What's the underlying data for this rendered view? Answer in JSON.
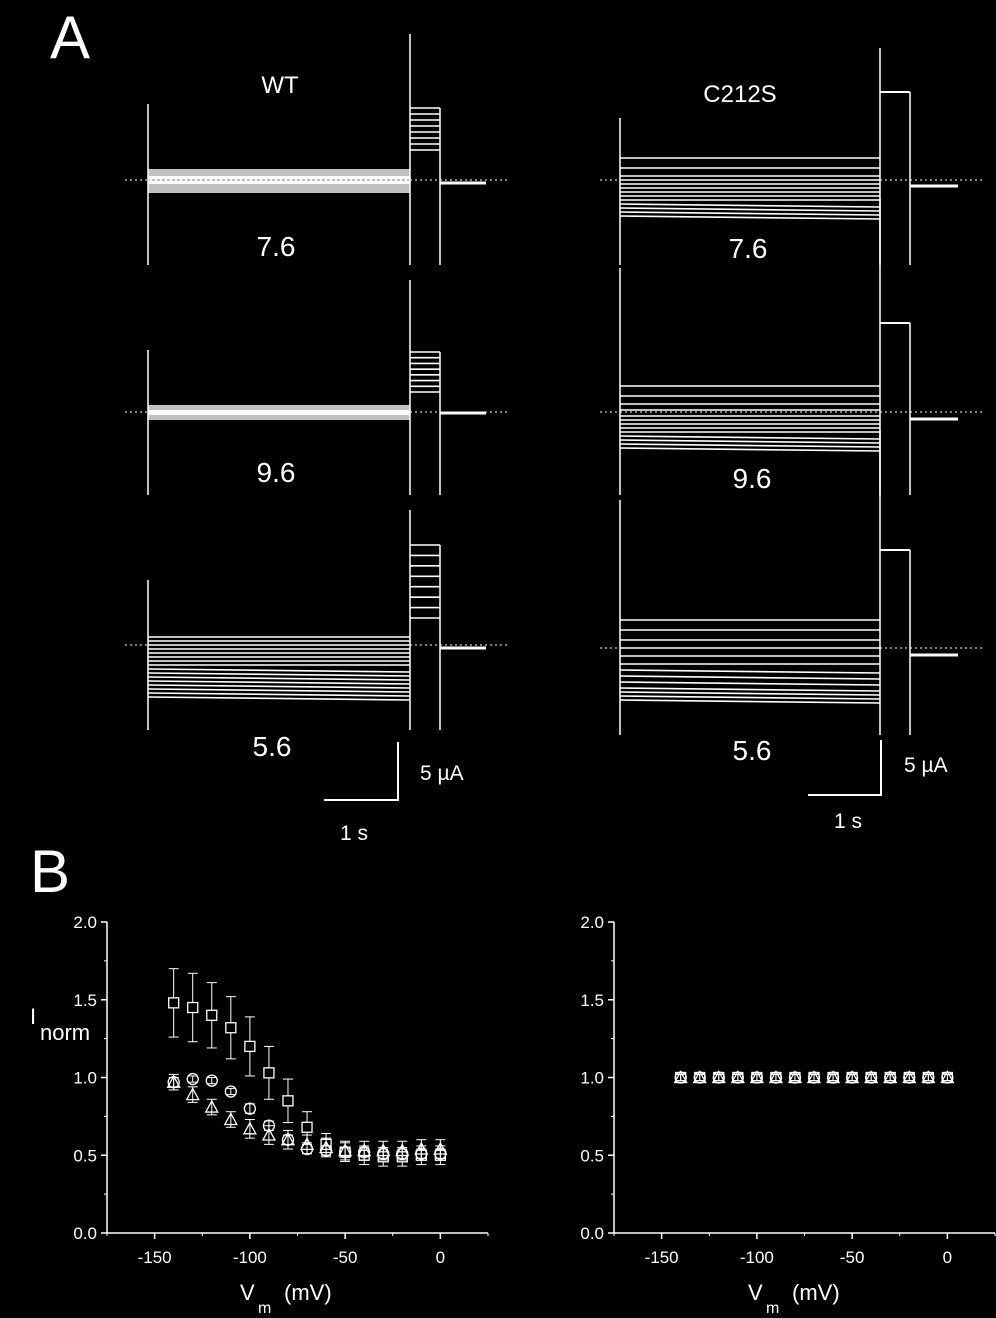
{
  "panel_a": {
    "letter": "A",
    "columns": [
      {
        "label": "WT",
        "traces": [
          {
            "ph": "7.6"
          },
          {
            "ph": "9.6"
          },
          {
            "ph": "5.6"
          }
        ]
      },
      {
        "label": "C212S",
        "traces": [
          {
            "ph": "7.6"
          },
          {
            "ph": "9.6"
          },
          {
            "ph": "5.6"
          }
        ]
      }
    ],
    "scalebars": [
      {
        "current": "5 µA",
        "time": "1 s"
      },
      {
        "current": "5 µA",
        "time": "1 s"
      }
    ]
  },
  "panel_b": {
    "letter": "B",
    "ylabel_main": "I",
    "ylabel_sub": "norm",
    "xlabel_main": "V",
    "xlabel_sub": "m",
    "xlabel_unit": "(mV)"
  },
  "chart_data": [
    {
      "type": "scatter",
      "name": "WT",
      "xlim": [
        -175,
        25
      ],
      "ylim": [
        0.0,
        2.0
      ],
      "xticks": [
        -150,
        -100,
        -50,
        0
      ],
      "yticks": [
        "0.0",
        "0.5",
        "1.0",
        "1.5",
        "2.0"
      ],
      "x": [
        -140,
        -130,
        -120,
        -110,
        -100,
        -90,
        -80,
        -70,
        -60,
        -50,
        -40,
        -30,
        -20,
        -10,
        0
      ],
      "series": [
        {
          "marker": "square",
          "values": [
            1.48,
            1.45,
            1.4,
            1.32,
            1.2,
            1.03,
            0.85,
            0.68,
            0.57,
            0.52,
            0.5,
            0.49,
            0.49,
            0.5,
            0.5
          ],
          "errors": [
            0.22,
            0.22,
            0.21,
            0.2,
            0.19,
            0.17,
            0.14,
            0.1,
            0.07,
            0.06,
            0.06,
            0.06,
            0.06,
            0.06,
            0.06
          ]
        },
        {
          "marker": "circle-cross",
          "values": [
            0.97,
            0.99,
            0.98,
            0.91,
            0.8,
            0.69,
            0.6,
            0.54,
            0.53,
            0.52,
            0.52,
            0.51,
            0.51,
            0.51,
            0.51
          ],
          "errors": [
            0.03,
            0.02,
            0.02,
            0.02,
            0.03,
            0.03,
            0.03,
            0.03,
            0.03,
            0.03,
            0.03,
            0.03,
            0.03,
            0.03,
            0.03
          ]
        },
        {
          "marker": "triangle",
          "values": [
            0.97,
            0.89,
            0.81,
            0.73,
            0.67,
            0.63,
            0.6,
            0.57,
            0.55,
            0.53,
            0.53,
            0.53,
            0.53,
            0.54,
            0.54
          ],
          "errors": [
            0.05,
            0.05,
            0.05,
            0.05,
            0.06,
            0.06,
            0.06,
            0.06,
            0.06,
            0.06,
            0.06,
            0.06,
            0.06,
            0.06,
            0.06
          ]
        }
      ]
    },
    {
      "type": "scatter",
      "name": "C212S",
      "xlim": [
        -175,
        25
      ],
      "ylim": [
        0.0,
        2.0
      ],
      "xticks": [
        -150,
        -100,
        -50,
        0
      ],
      "yticks": [
        "0.0",
        "0.5",
        "1.0",
        "1.5",
        "2.0"
      ],
      "x": [
        -140,
        -130,
        -120,
        -110,
        -100,
        -90,
        -80,
        -70,
        -60,
        -50,
        -40,
        -30,
        -20,
        -10,
        0
      ],
      "series": [
        {
          "marker": "square",
          "values": [
            1.0,
            1.0,
            1.0,
            1.0,
            1.0,
            1.0,
            1.0,
            1.0,
            1.0,
            1.0,
            1.0,
            1.0,
            1.0,
            1.0,
            1.0
          ],
          "errors": [
            0.02,
            0.02,
            0.02,
            0.02,
            0.02,
            0.02,
            0.02,
            0.02,
            0.02,
            0.02,
            0.02,
            0.02,
            0.02,
            0.02,
            0.02
          ]
        },
        {
          "marker": "circle-cross",
          "values": [
            1.0,
            1.0,
            1.0,
            1.0,
            1.0,
            1.0,
            1.0,
            1.0,
            1.0,
            1.0,
            1.0,
            1.0,
            1.0,
            1.0,
            1.0
          ],
          "errors": [
            0.02,
            0.02,
            0.02,
            0.02,
            0.02,
            0.02,
            0.02,
            0.02,
            0.02,
            0.02,
            0.02,
            0.02,
            0.02,
            0.02,
            0.02
          ]
        },
        {
          "marker": "triangle",
          "values": [
            1.0,
            1.0,
            1.0,
            1.0,
            1.0,
            1.0,
            1.0,
            1.0,
            1.0,
            1.0,
            1.0,
            1.0,
            1.0,
            1.0,
            1.0
          ],
          "errors": [
            0.02,
            0.02,
            0.02,
            0.02,
            0.02,
            0.02,
            0.02,
            0.02,
            0.02,
            0.02,
            0.02,
            0.02,
            0.02,
            0.02,
            0.02
          ]
        }
      ]
    }
  ]
}
